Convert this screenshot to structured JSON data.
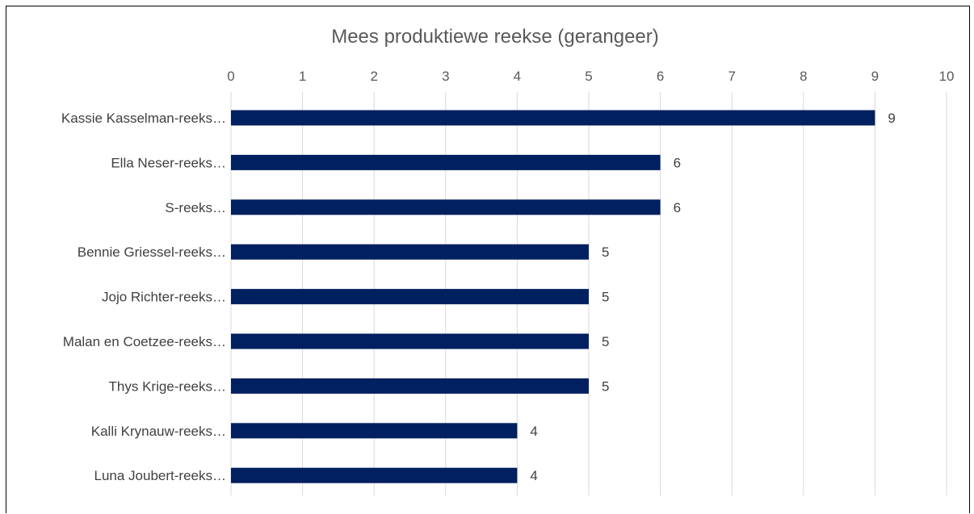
{
  "chart_data": {
    "type": "bar",
    "orientation": "horizontal",
    "title": "Mees produktiewe reekse (gerangeer)",
    "categories": [
      "Kassie Kasselman-reeks…",
      "Ella Neser-reeks…",
      "S-reeks…",
      "Bennie Griessel-reeks…",
      "Jojo Richter-reeks…",
      "Malan en Coetzee-reeks…",
      "Thys Krige-reeks…",
      "Kalli Krynauw-reeks…",
      "Luna Joubert-reeks…"
    ],
    "values": [
      9,
      6,
      6,
      5,
      5,
      5,
      5,
      4,
      4
    ],
    "data_labels": [
      "9",
      "6",
      "6",
      "5",
      "5",
      "5",
      "5",
      "4",
      "4"
    ],
    "xlim": [
      0,
      10
    ],
    "x_ticks": [
      "0",
      "1",
      "2",
      "3",
      "4",
      "5",
      "6",
      "7",
      "8",
      "9",
      "10"
    ],
    "x_axis_position": "top",
    "grid": true,
    "legend": "none",
    "bar_color": "#002060",
    "gridline_color": "#d9d9d9"
  }
}
